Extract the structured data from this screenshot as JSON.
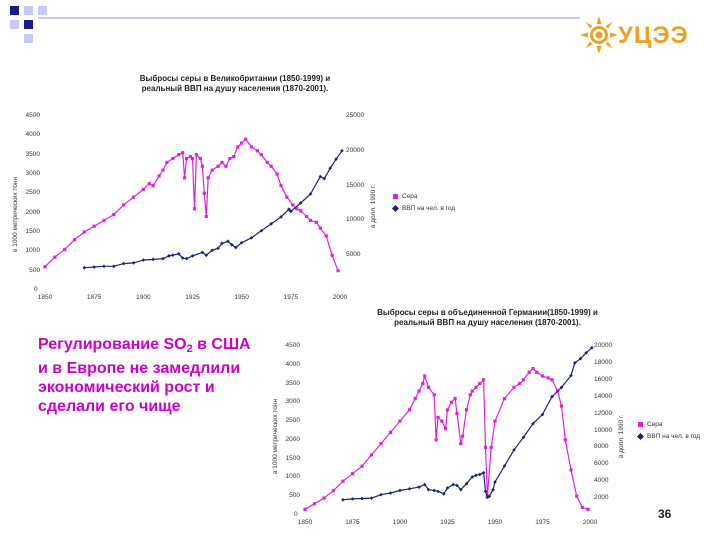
{
  "logo": {
    "text": "УЦЭЭ",
    "icon": "sun-icon"
  },
  "colors": {
    "sulfur": "#e020e0",
    "gdp": "#1a237e",
    "accent": "#f0a020",
    "caption": "#cc00cc"
  },
  "caption": [
    "Регулирование SO",
    "2",
    " в США и в Европе не замедлили экономический рост и сделали его чище"
  ],
  "page_number": "36",
  "chart_data": [
    {
      "type": "line",
      "title": "Выбросы серы в Великобритании (1850-1999) и реальный ВВП на душу населения (1870-2001).",
      "x": {
        "min": 1850,
        "max": 2000,
        "ticks": [
          1850,
          1875,
          1900,
          1925,
          1950,
          1975,
          2000
        ]
      },
      "y_left": {
        "label": "в 1000 метрических тонн",
        "min": 0,
        "max": 4500,
        "ticks": [
          500,
          1000,
          1500,
          2000,
          2500,
          3000,
          3500,
          4000,
          4500
        ]
      },
      "y_right": {
        "label": "в долл. 1990 г.",
        "min": 0,
        "max": 25000,
        "ticks": [
          5000,
          10000,
          15000,
          20000,
          25000
        ]
      },
      "legend": [
        "Сера",
        "ВВП на чел. в год"
      ],
      "series": [
        {
          "name": "Сера",
          "axis": "left",
          "points": [
            [
              1850,
              600
            ],
            [
              1855,
              850
            ],
            [
              1860,
              1050
            ],
            [
              1865,
              1300
            ],
            [
              1870,
              1500
            ],
            [
              1875,
              1650
            ],
            [
              1880,
              1800
            ],
            [
              1885,
              1950
            ],
            [
              1890,
              2200
            ],
            [
              1895,
              2400
            ],
            [
              1900,
              2600
            ],
            [
              1903,
              2750
            ],
            [
              1905,
              2700
            ],
            [
              1908,
              2950
            ],
            [
              1910,
              3100
            ],
            [
              1912,
              3300
            ],
            [
              1915,
              3400
            ],
            [
              1918,
              3500
            ],
            [
              1920,
              3550
            ],
            [
              1921,
              2900
            ],
            [
              1922,
              3400
            ],
            [
              1924,
              3450
            ],
            [
              1925,
              3400
            ],
            [
              1926,
              2100
            ],
            [
              1927,
              3500
            ],
            [
              1929,
              3400
            ],
            [
              1930,
              3200
            ],
            [
              1931,
              2500
            ],
            [
              1932,
              1900
            ],
            [
              1933,
              2900
            ],
            [
              1935,
              3100
            ],
            [
              1938,
              3200
            ],
            [
              1940,
              3300
            ],
            [
              1942,
              3200
            ],
            [
              1944,
              3400
            ],
            [
              1946,
              3450
            ],
            [
              1948,
              3700
            ],
            [
              1950,
              3800
            ],
            [
              1952,
              3900
            ],
            [
              1955,
              3700
            ],
            [
              1958,
              3600
            ],
            [
              1960,
              3500
            ],
            [
              1963,
              3300
            ],
            [
              1965,
              3200
            ],
            [
              1968,
              3000
            ],
            [
              1970,
              2700
            ],
            [
              1973,
              2400
            ],
            [
              1976,
              2200
            ],
            [
              1978,
              2100
            ],
            [
              1980,
              2050
            ],
            [
              1983,
              1900
            ],
            [
              1985,
              1800
            ],
            [
              1988,
              1750
            ],
            [
              1990,
              1600
            ],
            [
              1993,
              1400
            ],
            [
              1996,
              900
            ],
            [
              1999,
              500
            ]
          ]
        },
        {
          "name": "ВВП на чел. в год",
          "axis": "right",
          "points": [
            [
              1870,
              3200
            ],
            [
              1875,
              3300
            ],
            [
              1880,
              3400
            ],
            [
              1885,
              3400
            ],
            [
              1890,
              3800
            ],
            [
              1895,
              3900
            ],
            [
              1900,
              4300
            ],
            [
              1905,
              4400
            ],
            [
              1910,
              4500
            ],
            [
              1913,
              4900
            ],
            [
              1915,
              5000
            ],
            [
              1918,
              5200
            ],
            [
              1920,
              4600
            ],
            [
              1922,
              4500
            ],
            [
              1925,
              4900
            ],
            [
              1930,
              5400
            ],
            [
              1932,
              5000
            ],
            [
              1935,
              5700
            ],
            [
              1938,
              6000
            ],
            [
              1940,
              6700
            ],
            [
              1943,
              7000
            ],
            [
              1945,
              6500
            ],
            [
              1947,
              6100
            ],
            [
              1950,
              6800
            ],
            [
              1955,
              7500
            ],
            [
              1960,
              8500
            ],
            [
              1965,
              9500
            ],
            [
              1970,
              10500
            ],
            [
              1974,
              11600
            ],
            [
              1975,
              11300
            ],
            [
              1980,
              12500
            ],
            [
              1985,
              13800
            ],
            [
              1990,
              16300
            ],
            [
              1992,
              16000
            ],
            [
              1995,
              17500
            ],
            [
              1998,
              18800
            ],
            [
              2001,
              20000
            ]
          ]
        }
      ]
    },
    {
      "type": "line",
      "title": "Выбросы серы в объединенной Германии(1850-1999) и реальный ВВП на душу населения (1870-2001).",
      "x": {
        "min": 1850,
        "max": 2000,
        "ticks": [
          1850,
          1875,
          1900,
          1925,
          1950,
          1975,
          2000
        ]
      },
      "y_left": {
        "label": "в 1000 метрических тонн",
        "min": 0,
        "max": 4500,
        "ticks": [
          500,
          1000,
          1500,
          2000,
          2500,
          3000,
          3500,
          4000,
          4500
        ]
      },
      "y_right": {
        "label": "в долл. 1990 г.",
        "min": 0,
        "max": 20000,
        "ticks": [
          2000,
          4000,
          6000,
          8000,
          10000,
          12000,
          14000,
          16000,
          18000,
          20000
        ]
      },
      "legend": [
        "Сера",
        "ВВП на чел. в год"
      ],
      "series": [
        {
          "name": "Сера",
          "axis": "left",
          "points": [
            [
              1850,
              150
            ],
            [
              1855,
              300
            ],
            [
              1860,
              450
            ],
            [
              1865,
              650
            ],
            [
              1870,
              900
            ],
            [
              1875,
              1100
            ],
            [
              1880,
              1300
            ],
            [
              1885,
              1600
            ],
            [
              1890,
              1900
            ],
            [
              1895,
              2200
            ],
            [
              1900,
              2500
            ],
            [
              1905,
              2800
            ],
            [
              1908,
              3100
            ],
            [
              1910,
              3300
            ],
            [
              1912,
              3500
            ],
            [
              1913,
              3700
            ],
            [
              1915,
              3400
            ],
            [
              1918,
              3200
            ],
            [
              1919,
              2000
            ],
            [
              1920,
              2600
            ],
            [
              1922,
              2500
            ],
            [
              1924,
              2300
            ],
            [
              1925,
              2800
            ],
            [
              1927,
              3000
            ],
            [
              1929,
              3100
            ],
            [
              1930,
              2700
            ],
            [
              1932,
              1900
            ],
            [
              1933,
              2100
            ],
            [
              1935,
              2800
            ],
            [
              1937,
              3200
            ],
            [
              1938,
              3300
            ],
            [
              1940,
              3400
            ],
            [
              1942,
              3500
            ],
            [
              1944,
              3600
            ],
            [
              1945,
              1800
            ],
            [
              1946,
              500
            ],
            [
              1948,
              1800
            ],
            [
              1950,
              2500
            ],
            [
              1955,
              3100
            ],
            [
              1960,
              3400
            ],
            [
              1963,
              3500
            ],
            [
              1965,
              3600
            ],
            [
              1968,
              3800
            ],
            [
              1970,
              3900
            ],
            [
              1972,
              3800
            ],
            [
              1975,
              3700
            ],
            [
              1978,
              3650
            ],
            [
              1980,
              3600
            ],
            [
              1983,
              3300
            ],
            [
              1985,
              2900
            ],
            [
              1987,
              2000
            ],
            [
              1990,
              1200
            ],
            [
              1993,
              500
            ],
            [
              1996,
              200
            ],
            [
              1999,
              150
            ]
          ]
        },
        {
          "name": "ВВП на чел. в год",
          "axis": "right",
          "points": [
            [
              1870,
              1800
            ],
            [
              1875,
              1900
            ],
            [
              1880,
              1950
            ],
            [
              1885,
              2000
            ],
            [
              1890,
              2400
            ],
            [
              1895,
              2600
            ],
            [
              1900,
              2900
            ],
            [
              1905,
              3100
            ],
            [
              1910,
              3300
            ],
            [
              1913,
              3600
            ],
            [
              1915,
              3000
            ],
            [
              1918,
              2900
            ],
            [
              1920,
              2800
            ],
            [
              1923,
              2500
            ],
            [
              1925,
              3200
            ],
            [
              1928,
              3600
            ],
            [
              1930,
              3500
            ],
            [
              1932,
              3000
            ],
            [
              1935,
              3700
            ],
            [
              1938,
              4500
            ],
            [
              1940,
              4700
            ],
            [
              1942,
              4800
            ],
            [
              1944,
              5000
            ],
            [
              1945,
              2800
            ],
            [
              1946,
              2100
            ],
            [
              1947,
              2200
            ],
            [
              1949,
              3000
            ],
            [
              1950,
              3900
            ],
            [
              1955,
              5800
            ],
            [
              1960,
              7700
            ],
            [
              1965,
              9200
            ],
            [
              1970,
              10800
            ],
            [
              1975,
              11900
            ],
            [
              1980,
              14000
            ],
            [
              1985,
              15100
            ],
            [
              1990,
              16500
            ],
            [
              1992,
              18000
            ],
            [
              1995,
              18500
            ],
            [
              1998,
              19200
            ],
            [
              2001,
              19800
            ]
          ]
        }
      ]
    }
  ]
}
